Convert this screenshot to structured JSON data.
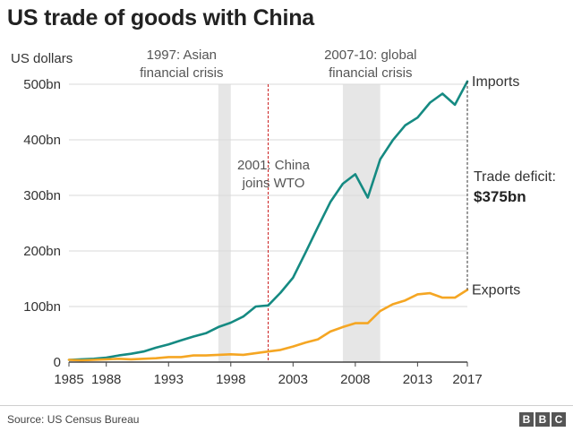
{
  "title": "US trade of goods with China",
  "source": "Source: US Census Bureau",
  "logo_letters": [
    "B",
    "B",
    "C"
  ],
  "colors": {
    "imports": "#158a82",
    "exports": "#f5a623",
    "shade": "#e6e6e6",
    "wto_line": "#cc2222",
    "axis": "#444444",
    "grid": "#d9d9d9"
  },
  "chart_data": {
    "type": "line",
    "title": "US trade of goods with China",
    "ylabel": "US dollars",
    "xlabel": "",
    "xlim": [
      1985,
      2017
    ],
    "ylim": [
      0,
      500
    ],
    "yticks": [
      0,
      100,
      200,
      300,
      400,
      500
    ],
    "ytick_labels": [
      "0",
      "100bn",
      "200bn",
      "300bn",
      "400bn",
      "500bn"
    ],
    "xticks": [
      1985,
      1988,
      1993,
      1998,
      2003,
      2008,
      2013,
      2017
    ],
    "xtick_labels": [
      "1985",
      "1988",
      "1993",
      "1998",
      "2003",
      "2008",
      "2013",
      "2017"
    ],
    "x": [
      1985,
      1986,
      1987,
      1988,
      1989,
      1990,
      1991,
      1992,
      1993,
      1994,
      1995,
      1996,
      1997,
      1998,
      1999,
      2000,
      2001,
      2002,
      2003,
      2004,
      2005,
      2006,
      2007,
      2008,
      2009,
      2010,
      2011,
      2012,
      2013,
      2014,
      2015,
      2016,
      2017
    ],
    "series": [
      {
        "name": "Imports",
        "key": "imports",
        "values": [
          4,
          5,
          6,
          8,
          12,
          15,
          19,
          26,
          32,
          39,
          46,
          52,
          63,
          71,
          82,
          100,
          102,
          125,
          152,
          197,
          243,
          288,
          321,
          338,
          296,
          365,
          399,
          426,
          440,
          467,
          483,
          463,
          505
        ]
      },
      {
        "name": "Exports",
        "key": "exports",
        "values": [
          4,
          3,
          4,
          5,
          6,
          5,
          6,
          7,
          9,
          9,
          12,
          12,
          13,
          14,
          13,
          16,
          19,
          22,
          28,
          35,
          41,
          55,
          63,
          70,
          70,
          92,
          104,
          111,
          122,
          124,
          116,
          116,
          130
        ]
      }
    ],
    "shaded_periods": [
      {
        "start": 1997,
        "end": 1998,
        "label_line1": "1997: Asian",
        "label_line2": "financial crisis"
      },
      {
        "start": 2007,
        "end": 2010,
        "label_line1": "2007-10: global",
        "label_line2": "financial crisis"
      }
    ],
    "event_line": {
      "x": 2001,
      "label_line1": "2001: China",
      "label_line2": "joins WTO"
    },
    "deficit": {
      "x": 2017,
      "label": "Trade deficit:",
      "value": "$375bn"
    }
  }
}
